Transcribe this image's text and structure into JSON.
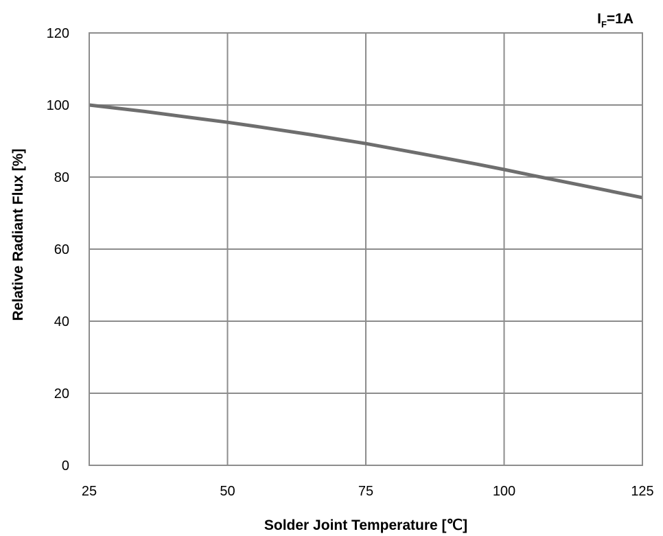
{
  "chart_data": {
    "type": "line",
    "title": "",
    "condition": {
      "symbol": "I",
      "subscript": "F",
      "value": "=1A"
    },
    "xlabel": "Solder Joint Temperature [℃]",
    "ylabel": "Relative Radiant Flux [%]",
    "xlim": [
      25,
      125
    ],
    "ylim": [
      0,
      120
    ],
    "xticks": [
      25,
      50,
      75,
      100,
      125
    ],
    "yticks": [
      0,
      20,
      40,
      60,
      80,
      100,
      120
    ],
    "grid": true,
    "series": [
      {
        "color": "#6e6e6e",
        "x": [
          25,
          35,
          45,
          50,
          55,
          65,
          75,
          85,
          95,
          100,
          105,
          115,
          125
        ],
        "y": [
          100,
          98.2,
          96.2,
          95.2,
          94.1,
          91.8,
          89.3,
          86.5,
          83.6,
          82.1,
          80.5,
          77.4,
          74.3
        ]
      }
    ]
  }
}
